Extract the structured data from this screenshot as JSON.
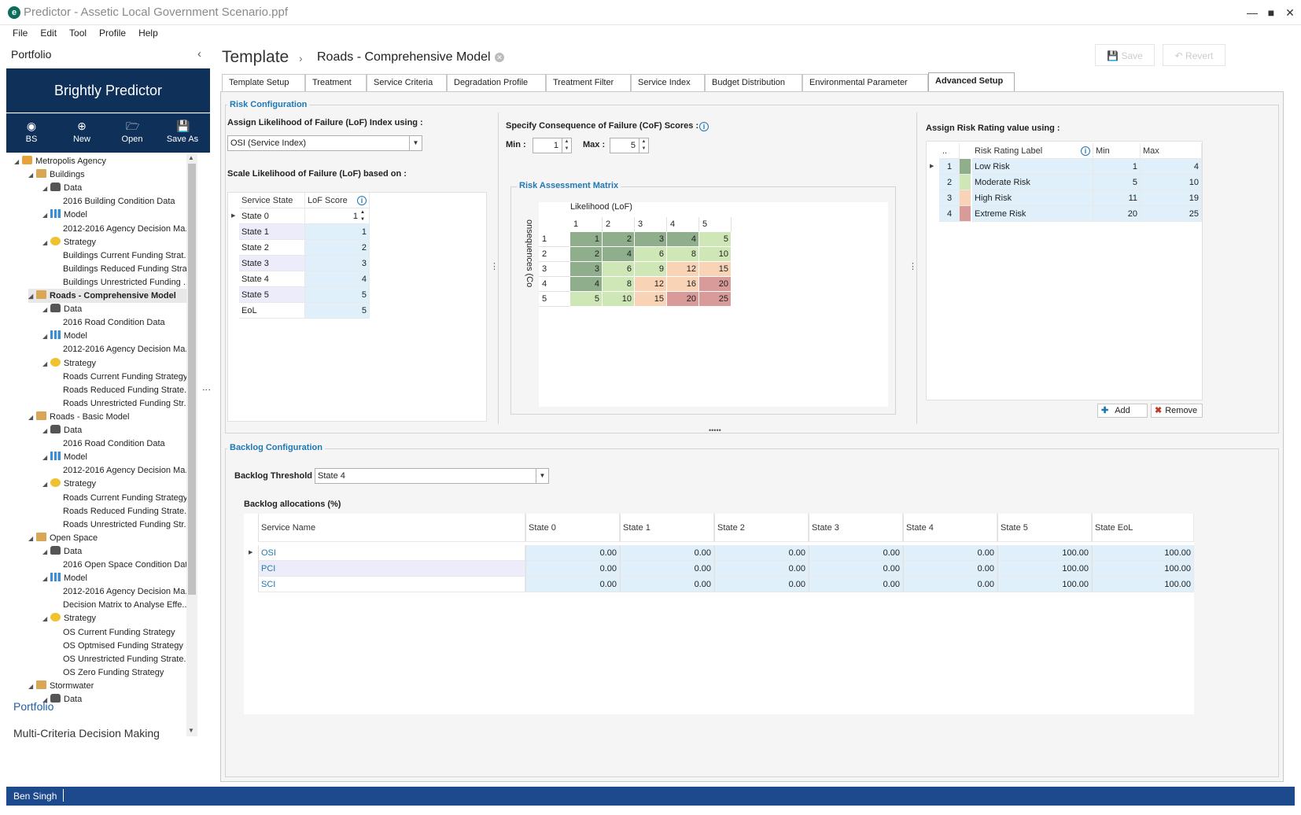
{
  "window": {
    "title": "Predictor - Assetic Local Government Scenario.ppf"
  },
  "menu": [
    "File",
    "Edit",
    "Tool",
    "Profile",
    "Help"
  ],
  "left": {
    "portfolio_title": "Portfolio",
    "brand": "Brightly Predictor",
    "toolbar": [
      {
        "label": "BS",
        "icon": "user-icon"
      },
      {
        "label": "New",
        "icon": "plus-icon"
      },
      {
        "label": "Open",
        "icon": "folder-icon"
      },
      {
        "label": "Save As",
        "icon": "save-icon"
      }
    ],
    "tree": [
      {
        "label": "Metropolis Agency",
        "level": 0,
        "icon": "agency"
      },
      {
        "label": "Buildings",
        "level": 1,
        "icon": "folder"
      },
      {
        "label": "Data",
        "level": 2,
        "icon": "db"
      },
      {
        "label": "2016 Building Condition Data",
        "level": 3
      },
      {
        "label": "Model",
        "level": 2,
        "icon": "model"
      },
      {
        "label": "2012-2016 Agency Decision Ma...",
        "level": 3
      },
      {
        "label": "Strategy",
        "level": 2,
        "icon": "strat"
      },
      {
        "label": "Buildings Current Funding Strat...",
        "level": 3
      },
      {
        "label": "Buildings Reduced Funding Stra...",
        "level": 3
      },
      {
        "label": "Buildings Unrestricted Funding ...",
        "level": 3
      },
      {
        "label": "Roads - Comprehensive Model",
        "level": 1,
        "icon": "folder",
        "selected": true
      },
      {
        "label": "Data",
        "level": 2,
        "icon": "db"
      },
      {
        "label": "2016 Road Condition Data",
        "level": 3
      },
      {
        "label": "Model",
        "level": 2,
        "icon": "model"
      },
      {
        "label": "2012-2016 Agency Decision Ma...",
        "level": 3
      },
      {
        "label": "Strategy",
        "level": 2,
        "icon": "strat"
      },
      {
        "label": "Roads Current Funding Strategy",
        "level": 3
      },
      {
        "label": "Roads Reduced Funding Strate...",
        "level": 3
      },
      {
        "label": "Roads Unrestricted Funding Str...",
        "level": 3
      },
      {
        "label": "Roads - Basic Model",
        "level": 1,
        "icon": "folder"
      },
      {
        "label": "Data",
        "level": 2,
        "icon": "db"
      },
      {
        "label": "2016 Road Condition Data",
        "level": 3
      },
      {
        "label": "Model",
        "level": 2,
        "icon": "model"
      },
      {
        "label": "2012-2016 Agency Decision Ma...",
        "level": 3
      },
      {
        "label": "Strategy",
        "level": 2,
        "icon": "strat"
      },
      {
        "label": "Roads Current Funding Strategy",
        "level": 3
      },
      {
        "label": "Roads Reduced Funding Strate...",
        "level": 3
      },
      {
        "label": "Roads Unrestricted Funding Str...",
        "level": 3
      },
      {
        "label": "Open Space",
        "level": 1,
        "icon": "folder"
      },
      {
        "label": "Data",
        "level": 2,
        "icon": "db"
      },
      {
        "label": "2016 Open Space Condition Data",
        "level": 3
      },
      {
        "label": "Model",
        "level": 2,
        "icon": "model"
      },
      {
        "label": "2012-2016 Agency Decision Ma...",
        "level": 3
      },
      {
        "label": "Decision Matrix to Analyse Effe...",
        "level": 3
      },
      {
        "label": "Strategy",
        "level": 2,
        "icon": "strat"
      },
      {
        "label": "OS Current Funding Strategy",
        "level": 3
      },
      {
        "label": "OS Optmised Funding Strategy ...",
        "level": 3
      },
      {
        "label": "OS Unrestricted Funding Strate...",
        "level": 3
      },
      {
        "label": "OS Zero Funding Strategy",
        "level": 3
      },
      {
        "label": "Stormwater",
        "level": 1,
        "icon": "folder"
      },
      {
        "label": "Data",
        "level": 2,
        "icon": "db"
      }
    ],
    "nav_portfolio": "Portfolio",
    "nav_mcdm": "Multi-Criteria Decision Making"
  },
  "status": {
    "user": "Ben Singh"
  },
  "main": {
    "crumb_root": "Template",
    "crumb_leaf": "Roads - Comprehensive Model",
    "save_label": "Save",
    "revert_label": "Revert",
    "tabs": [
      "Template Setup",
      "Treatment",
      "Service Criteria",
      "Degradation Profile",
      "Treatment Filter",
      "Service Index",
      "Budget Distribution",
      "Environmental Parameter",
      "Advanced Setup"
    ],
    "active_tab": "Advanced Setup"
  },
  "risk": {
    "legend": "Risk Configuration",
    "lof_label": "Assign Likelihood of Failure (LoF) Index using :",
    "lof_value": "OSI (Service Index)",
    "scale_label": "Scale Likelihood of Failure (LoF) based on :",
    "lof_grid": {
      "headers": [
        "Service State",
        "LoF Score"
      ],
      "rows": [
        [
          "State 0",
          "1"
        ],
        [
          "State 1",
          "1"
        ],
        [
          "State 2",
          "2"
        ],
        [
          "State 3",
          "3"
        ],
        [
          "State 4",
          "4"
        ],
        [
          "State 5",
          "5"
        ],
        [
          "EoL",
          "5"
        ]
      ]
    },
    "cof_label": "Specify Consequence of Failure (CoF) Scores :",
    "min_label": "Min :",
    "min_value": "1",
    "max_label": "Max :",
    "max_value": "5",
    "matrix_legend": "Risk Assessment Matrix",
    "matrix_x_label": "Likelihood (LoF)",
    "matrix_y_label": "onsequences (Co",
    "matrix_cols": [
      "1",
      "2",
      "3",
      "4",
      "5"
    ],
    "matrix_rows": [
      "1",
      "2",
      "3",
      "4",
      "5"
    ],
    "matrix_values": [
      [
        "1",
        "2",
        "3",
        "4",
        "5"
      ],
      [
        "2",
        "4",
        "6",
        "8",
        "10"
      ],
      [
        "3",
        "6",
        "9",
        "12",
        "15"
      ],
      [
        "4",
        "8",
        "12",
        "16",
        "20"
      ],
      [
        "5",
        "10",
        "15",
        "20",
        "25"
      ]
    ],
    "rating_label": "Assign Risk Rating value using :",
    "rating_grid": {
      "headers": [
        "..",
        "Risk Rating Label",
        "Min",
        "Max"
      ],
      "rows": [
        {
          "id": "1",
          "label": "Low Risk",
          "min": "1",
          "max": "4",
          "color": "#8fae8c"
        },
        {
          "id": "2",
          "label": "Moderate Risk",
          "min": "5",
          "max": "10",
          "color": "#cfe6b6"
        },
        {
          "id": "3",
          "label": "High Risk",
          "min": "11",
          "max": "19",
          "color": "#f8d3b5"
        },
        {
          "id": "4",
          "label": "Extreme Risk",
          "min": "20",
          "max": "25",
          "color": "#d99a9a"
        }
      ]
    },
    "add_label": "Add",
    "remove_label": "Remove"
  },
  "backlog": {
    "legend": "Backlog Configuration",
    "threshold_label": "Backlog Threshold",
    "threshold_value": "State 4",
    "alloc_label": "Backlog allocations (%)",
    "headers": [
      "Service Name",
      "State 0",
      "State 1",
      "State 2",
      "State 3",
      "State 4",
      "State 5",
      "State EoL"
    ],
    "rows": [
      [
        "OSI",
        "0.00",
        "0.00",
        "0.00",
        "0.00",
        "0.00",
        "100.00",
        "100.00"
      ],
      [
        "PCI",
        "0.00",
        "0.00",
        "0.00",
        "0.00",
        "0.00",
        "100.00",
        "100.00"
      ],
      [
        "SCI",
        "0.00",
        "0.00",
        "0.00",
        "0.00",
        "0.00",
        "100.00",
        "100.00"
      ]
    ]
  },
  "colors": {
    "brand": "#0e3059",
    "status": "#1c4a8c",
    "accent": "#1f78b4",
    "low": "#8fae8c",
    "moderate": "#cfe6b6",
    "high": "#f8d3b5",
    "extreme": "#d99a9a"
  }
}
